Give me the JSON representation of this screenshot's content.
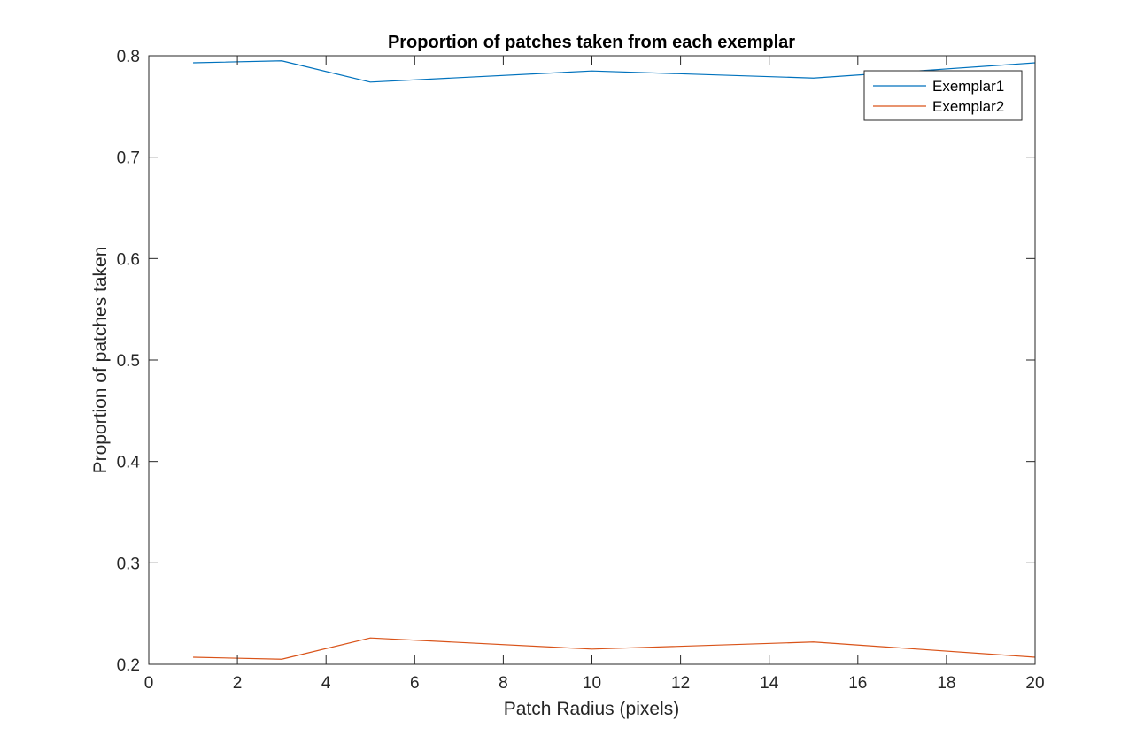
{
  "chart_data": {
    "type": "line",
    "title": "Proportion of patches taken from each exemplar",
    "xlabel": "Patch Radius (pixels)",
    "ylabel": "Proportion of patches taken",
    "xlim": [
      0,
      20
    ],
    "ylim": [
      0.2,
      0.8
    ],
    "x_ticks": [
      "0",
      "2",
      "4",
      "6",
      "8",
      "10",
      "12",
      "14",
      "16",
      "18",
      "20"
    ],
    "y_ticks": [
      "0.2",
      "0.3",
      "0.4",
      "0.5",
      "0.6",
      "0.7",
      "0.8"
    ],
    "grid": false,
    "legend_position": "top-right",
    "x": [
      1,
      3,
      5,
      10,
      15,
      20
    ],
    "series": [
      {
        "name": "Exemplar1",
        "color": "#0072BD",
        "values": [
          0.793,
          0.795,
          0.774,
          0.785,
          0.778,
          0.793
        ]
      },
      {
        "name": "Exemplar2",
        "color": "#D95319",
        "values": [
          0.207,
          0.205,
          0.226,
          0.215,
          0.222,
          0.207
        ]
      }
    ]
  }
}
